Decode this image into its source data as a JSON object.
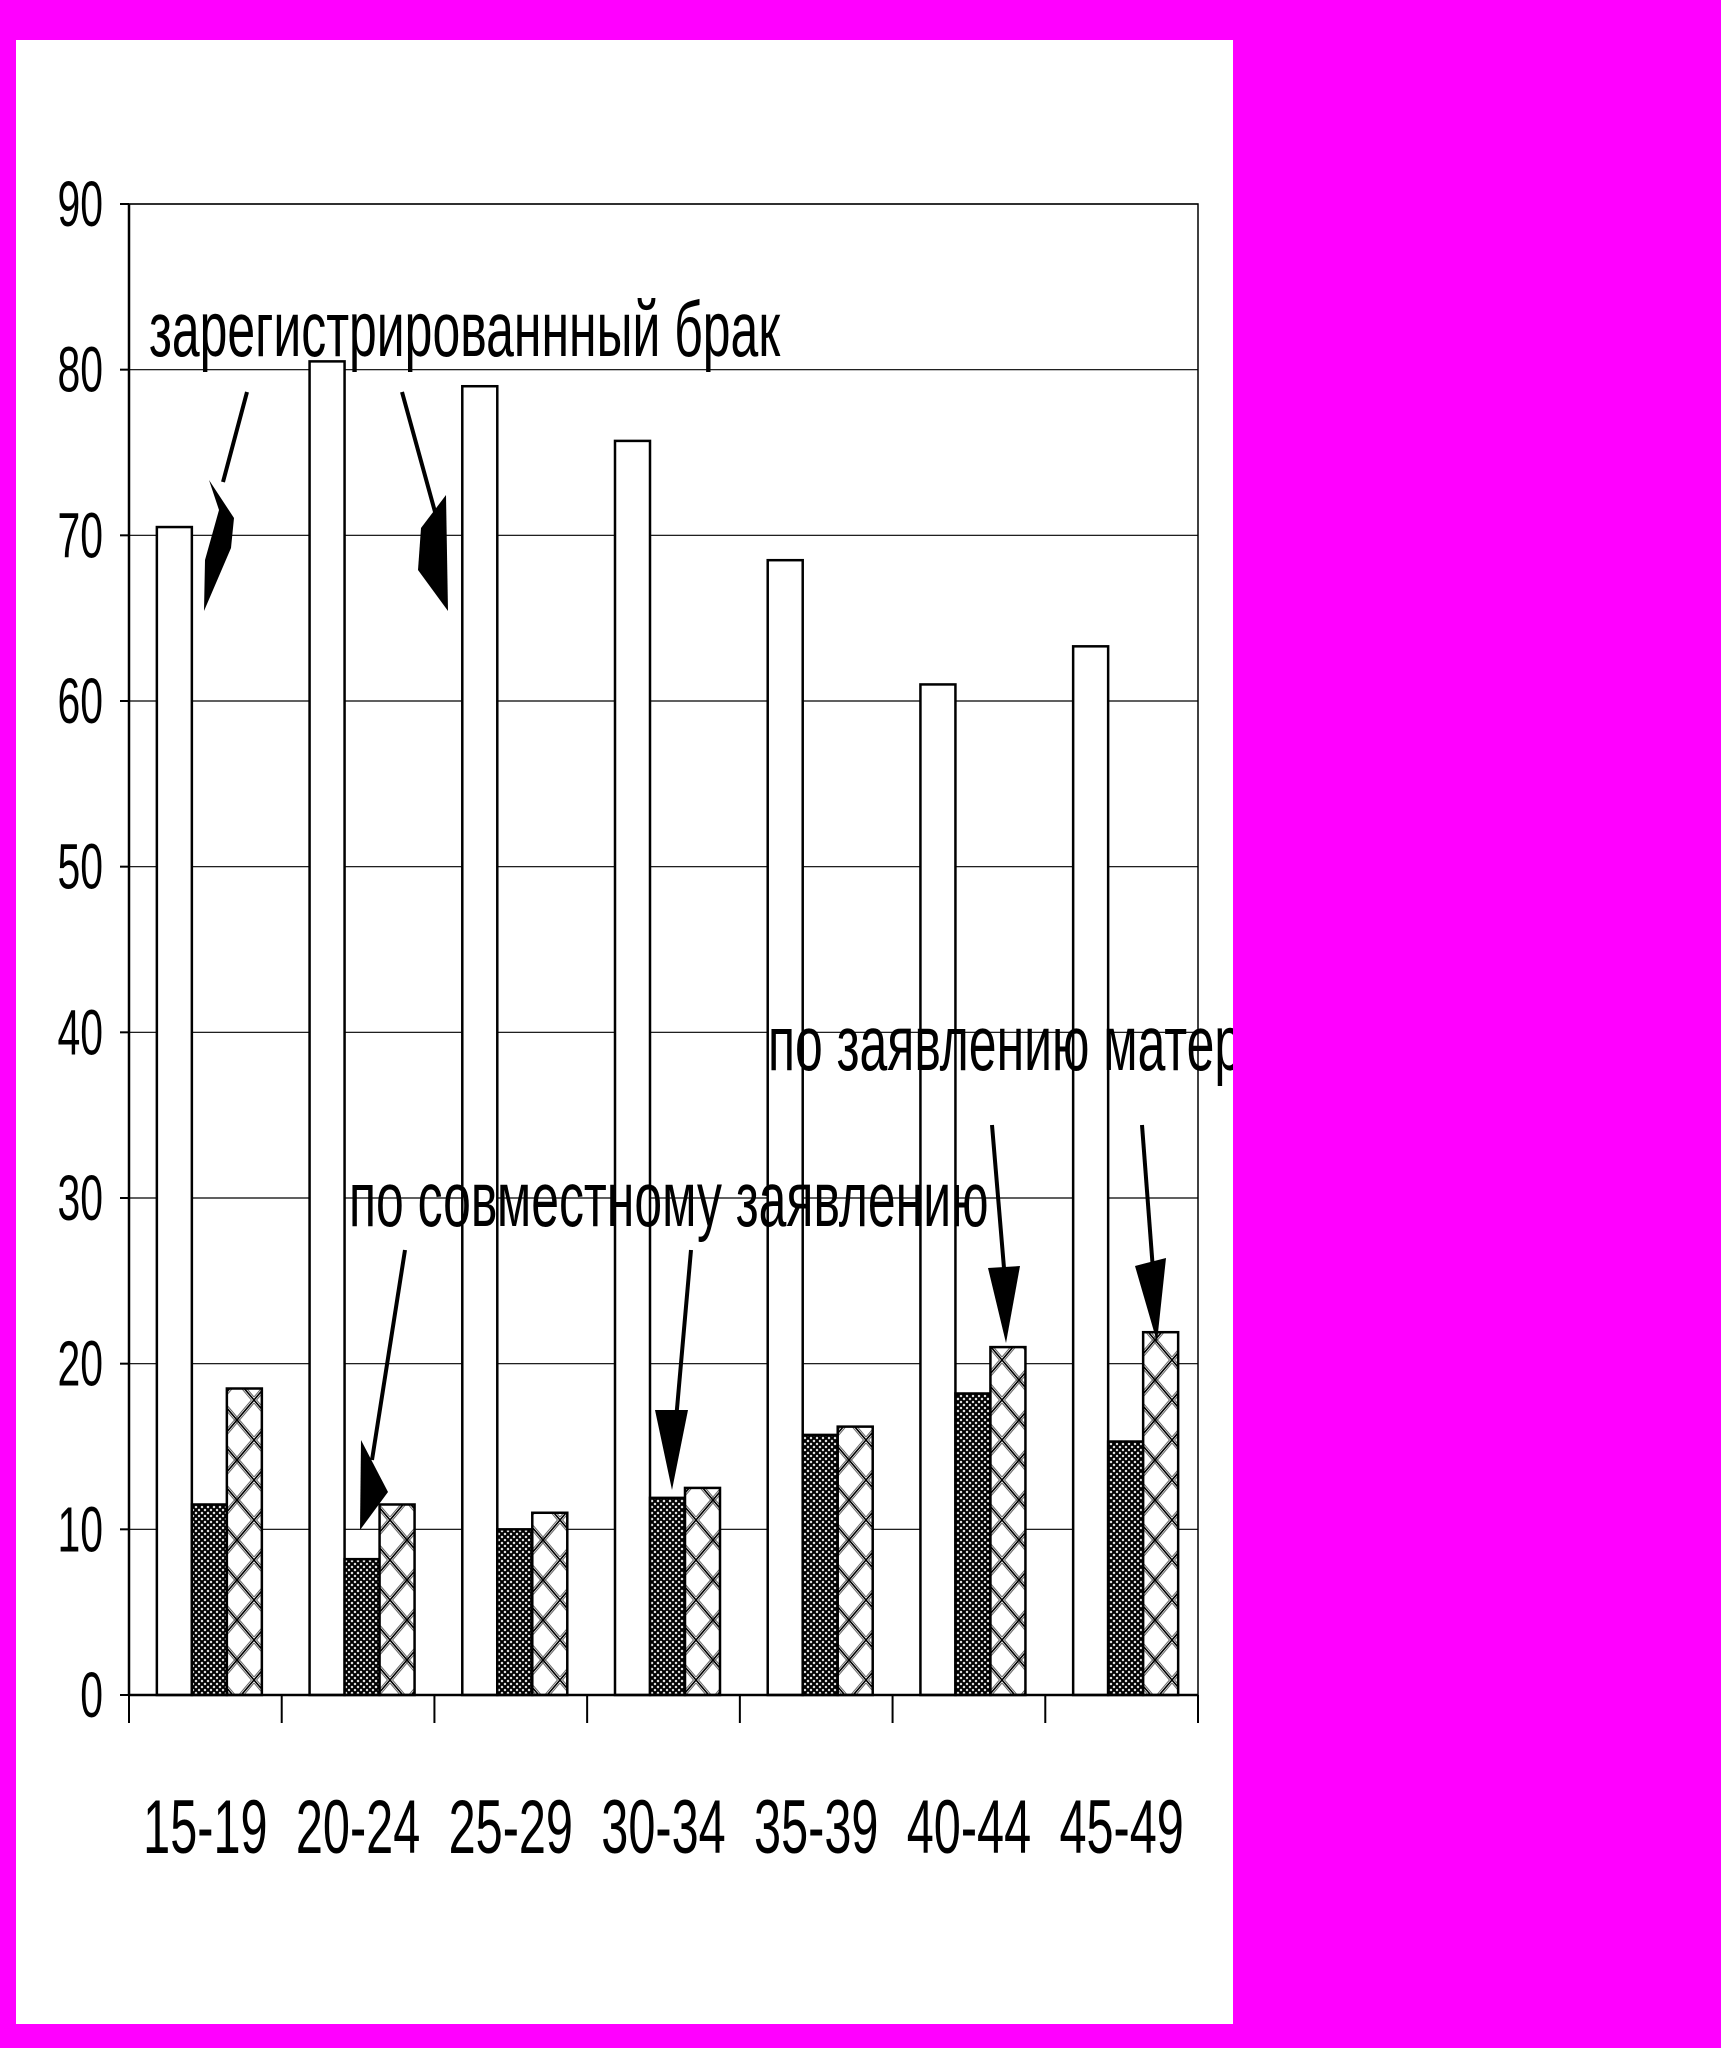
{
  "colors": {
    "background": "#FF00FF",
    "panel": "#FFFFFF",
    "bars": "#000000"
  },
  "chart_data": {
    "type": "bar",
    "title": "",
    "xlabel": "",
    "ylabel": "",
    "ylim": [
      0,
      90
    ],
    "yticks": [
      0,
      10,
      20,
      30,
      40,
      50,
      60,
      70,
      80,
      90
    ],
    "grid": true,
    "legend": "none",
    "categories": [
      "15-19",
      "20-24",
      "25-29",
      "30-34",
      "35-39",
      "40-44",
      "45-49"
    ],
    "series": [
      {
        "pattern": "white",
        "values": [
          70.5,
          80.5,
          79,
          75.7,
          68.5,
          61,
          63.3
        ]
      },
      {
        "pattern": "dense-dots",
        "values": [
          11.5,
          8.2,
          10,
          11.9,
          15.7,
          18.2,
          15.3
        ]
      },
      {
        "pattern": "diamond-lattice",
        "values": [
          18.5,
          11.5,
          11,
          12.5,
          16.2,
          21,
          21.9
        ]
      }
    ],
    "annotations": [
      {
        "text": "зарегистрированнный брак",
        "series": 0
      },
      {
        "text": "по совместному заявлению",
        "series": 1
      },
      {
        "text": "по заявлению матери",
        "series": 2
      }
    ]
  }
}
